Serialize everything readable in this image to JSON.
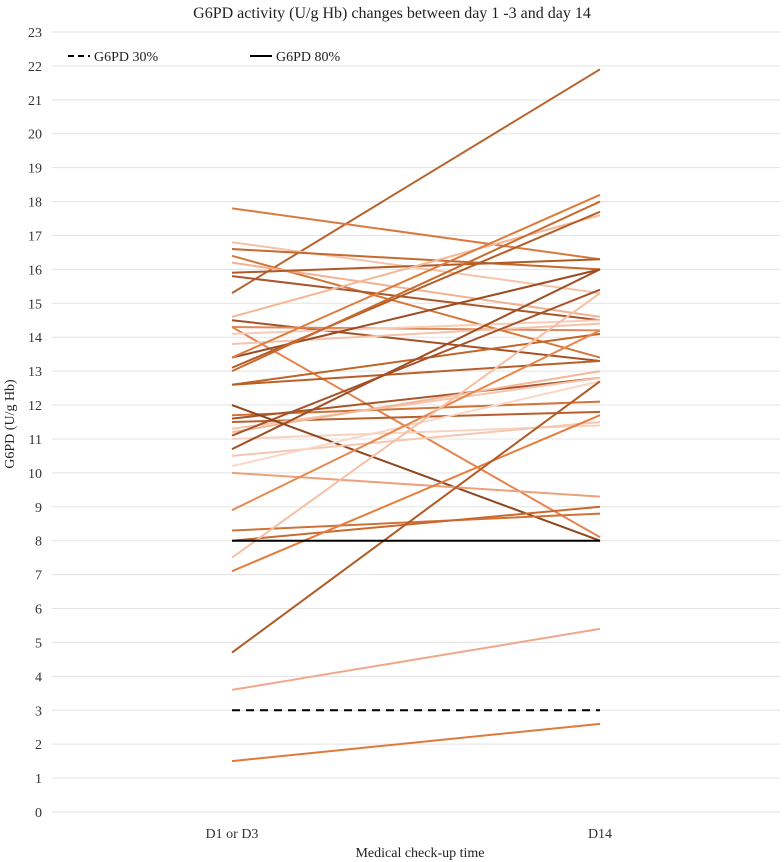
{
  "chart_data": {
    "type": "line",
    "title": "G6PD activity (U/g Hb) changes between day 1 -3 and day 14",
    "xlabel": "Medical check-up time",
    "ylabel": "G6PD (U/g Hb)",
    "categories": [
      "D1 or D3",
      "D14"
    ],
    "ylim": [
      0,
      23
    ],
    "yticks": [
      0,
      1,
      2,
      3,
      4,
      5,
      6,
      7,
      8,
      9,
      10,
      11,
      12,
      13,
      14,
      15,
      16,
      17,
      18,
      19,
      20,
      21,
      22,
      23
    ],
    "grid": true,
    "legend_position": "top-left",
    "legend": [
      {
        "label": "G6PD 30%",
        "style": "dashed",
        "color": "#000000"
      },
      {
        "label": "G6PD 80%",
        "style": "solid",
        "color": "#000000"
      }
    ],
    "reference_lines": [
      {
        "name": "G6PD 30%",
        "values": [
          3.0,
          3.0
        ],
        "style": "dashed",
        "color": "#000000"
      },
      {
        "name": "G6PD 80%",
        "values": [
          8.0,
          8.0
        ],
        "style": "solid",
        "color": "#000000"
      }
    ],
    "series": [
      {
        "values": [
          15.3,
          21.9
        ],
        "color": "#b8622c"
      },
      {
        "values": [
          17.8,
          16.3
        ],
        "color": "#d87a3e"
      },
      {
        "values": [
          16.8,
          15.3
        ],
        "color": "#f5c4a8"
      },
      {
        "values": [
          16.6,
          16.0
        ],
        "color": "#c5692f"
      },
      {
        "values": [
          16.4,
          13.4
        ],
        "color": "#d4783a"
      },
      {
        "values": [
          16.2,
          14.6
        ],
        "color": "#f0b292"
      },
      {
        "values": [
          15.9,
          16.3
        ],
        "color": "#b05a28"
      },
      {
        "values": [
          15.8,
          14.5
        ],
        "color": "#a9562a"
      },
      {
        "values": [
          14.6,
          17.6
        ],
        "color": "#f4b896"
      },
      {
        "values": [
          14.5,
          13.3
        ],
        "color": "#a45126"
      },
      {
        "values": [
          14.3,
          14.2
        ],
        "color": "#e0875a"
      },
      {
        "values": [
          14.3,
          8.1
        ],
        "color": "#e68450"
      },
      {
        "values": [
          14.1,
          14.5
        ],
        "color": "#f7cdb8"
      },
      {
        "values": [
          13.8,
          14.4
        ],
        "color": "#f6c3a9"
      },
      {
        "values": [
          13.4,
          16.0
        ],
        "color": "#9a4b20"
      },
      {
        "values": [
          13.4,
          18.2
        ],
        "color": "#e07a3c"
      },
      {
        "values": [
          13.1,
          17.7
        ],
        "color": "#b45c26"
      },
      {
        "values": [
          13.0,
          18.0
        ],
        "color": "#c86a2e"
      },
      {
        "values": [
          12.6,
          14.1
        ],
        "color": "#c06428"
      },
      {
        "values": [
          12.6,
          13.3
        ],
        "color": "#b85f2a"
      },
      {
        "values": [
          11.7,
          12.1
        ],
        "color": "#d27436"
      },
      {
        "values": [
          11.6,
          12.8
        ],
        "color": "#a8552a"
      },
      {
        "values": [
          11.5,
          11.8
        ],
        "color": "#b95e2b"
      },
      {
        "values": [
          11.3,
          12.8
        ],
        "color": "#f6c5ad"
      },
      {
        "values": [
          11.2,
          13.0
        ],
        "color": "#f3b89a"
      },
      {
        "values": [
          11.1,
          15.4
        ],
        "color": "#a5532a"
      },
      {
        "values": [
          11.0,
          11.4
        ],
        "color": "#f8d3c0"
      },
      {
        "values": [
          10.7,
          16.0
        ],
        "color": "#9f4e22"
      },
      {
        "values": [
          12.0,
          8.0
        ],
        "color": "#8e451d"
      },
      {
        "values": [
          10.5,
          11.5
        ],
        "color": "#f5c7b0"
      },
      {
        "values": [
          10.2,
          12.7
        ],
        "color": "#f9d6c6"
      },
      {
        "values": [
          10.0,
          9.3
        ],
        "color": "#eda07a"
      },
      {
        "values": [
          8.9,
          14.2
        ],
        "color": "#e8874c"
      },
      {
        "values": [
          8.3,
          8.8
        ],
        "color": "#d07236"
      },
      {
        "values": [
          8.0,
          9.0
        ],
        "color": "#c9692f"
      },
      {
        "values": [
          7.5,
          15.3
        ],
        "color": "#f6bfa3"
      },
      {
        "values": [
          7.1,
          11.7
        ],
        "color": "#e47c3c"
      },
      {
        "values": [
          4.7,
          12.7
        ],
        "color": "#b25a24"
      },
      {
        "values": [
          3.6,
          5.4
        ],
        "color": "#f0a88a"
      },
      {
        "values": [
          1.5,
          2.6
        ],
        "color": "#e07a3a"
      }
    ]
  }
}
